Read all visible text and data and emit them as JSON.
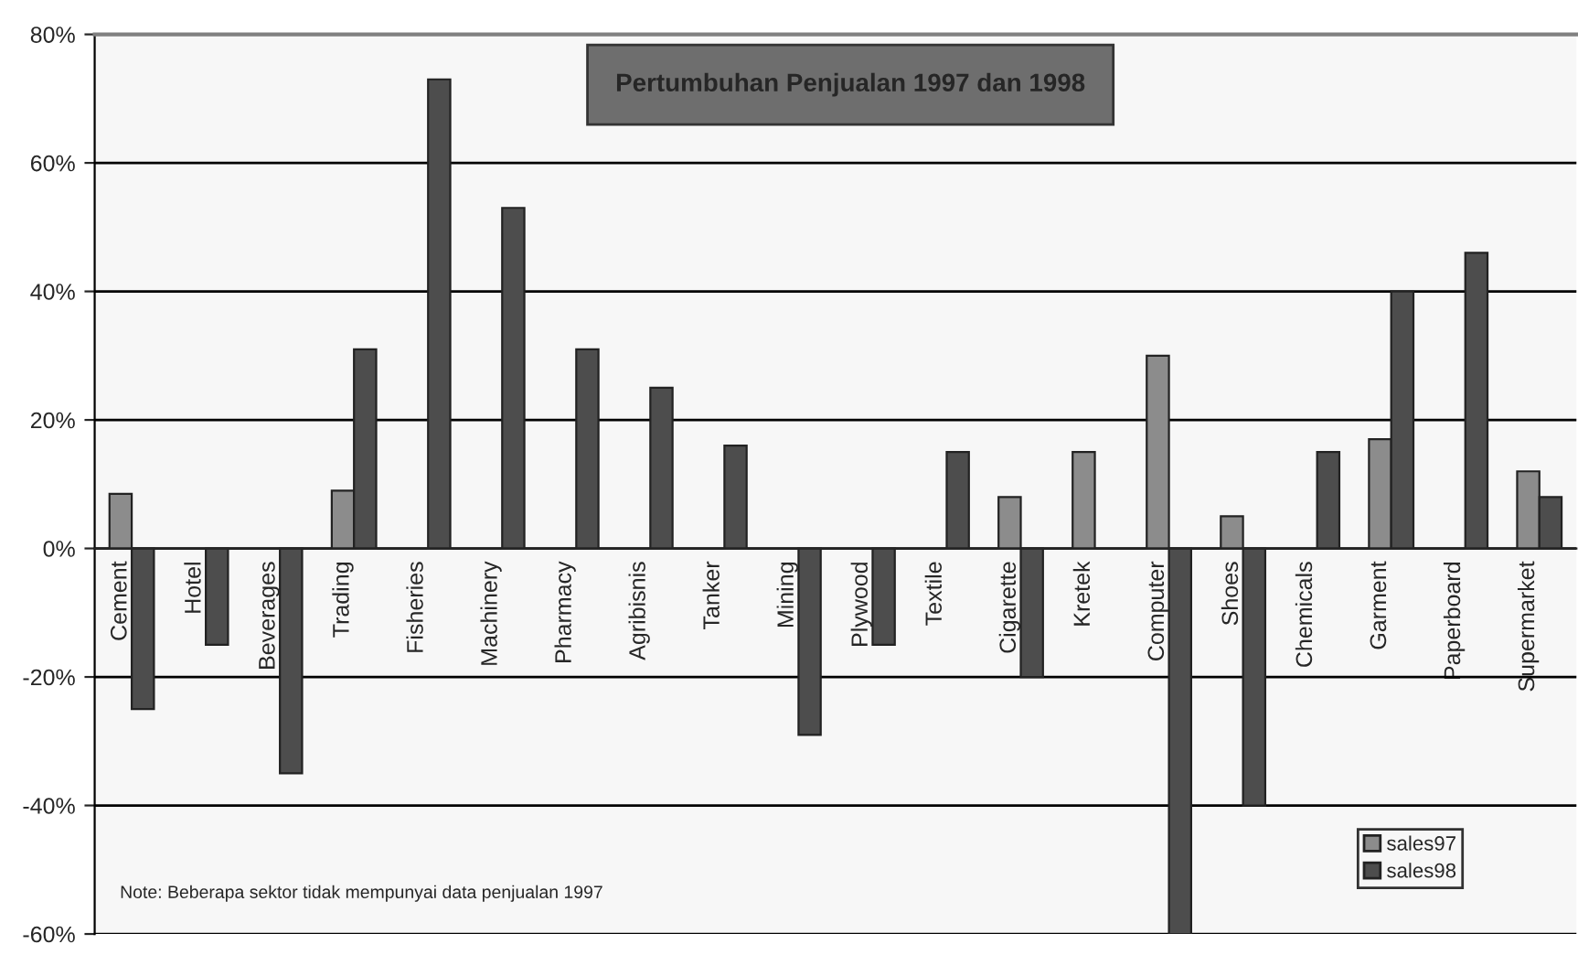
{
  "chart_data": {
    "type": "bar",
    "title": "Pertumbuhan Penjualan 1997 dan 1998",
    "categories": [
      "Cement",
      "Hotel",
      "Beverages",
      "Trading",
      "Fisheries",
      "Machinery",
      "Pharmacy",
      "Agribisnis",
      "Tanker",
      "Mining",
      "Plywood",
      "Textile",
      "Cigarette",
      "Kretek",
      "Computer",
      "Shoes",
      "Chemicals",
      "Garment",
      "Paperboard",
      "Supermarket"
    ],
    "series": [
      {
        "name": "sales97",
        "color": "#8c8c8c",
        "values": [
          8.5,
          null,
          null,
          9,
          null,
          null,
          null,
          null,
          null,
          null,
          null,
          null,
          8,
          15,
          30,
          5,
          null,
          17,
          null,
          12
        ]
      },
      {
        "name": "sales98",
        "color": "#4d4d4d",
        "values": [
          -25,
          -15,
          -35,
          31,
          73,
          53,
          31,
          25,
          16,
          -29,
          -15,
          15,
          -20,
          null,
          -60,
          -40,
          15,
          40,
          46,
          8
        ]
      }
    ],
    "ylim": [
      -60,
      80
    ],
    "yticks": [
      {
        "value": -60,
        "label": "-60%"
      },
      {
        "value": -40,
        "label": "-40%"
      },
      {
        "value": -20,
        "label": "-20%"
      },
      {
        "value": 0,
        "label": "0%"
      },
      {
        "value": 20,
        "label": "20%"
      },
      {
        "value": 40,
        "label": "40%"
      },
      {
        "value": 60,
        "label": "60%"
      },
      {
        "value": 80,
        "label": "80%"
      }
    ],
    "grid": "y",
    "legend": "bottom right",
    "annotations": [
      "Note: Beberapa sektor tidak mempunyai data penjualan 1997"
    ]
  }
}
